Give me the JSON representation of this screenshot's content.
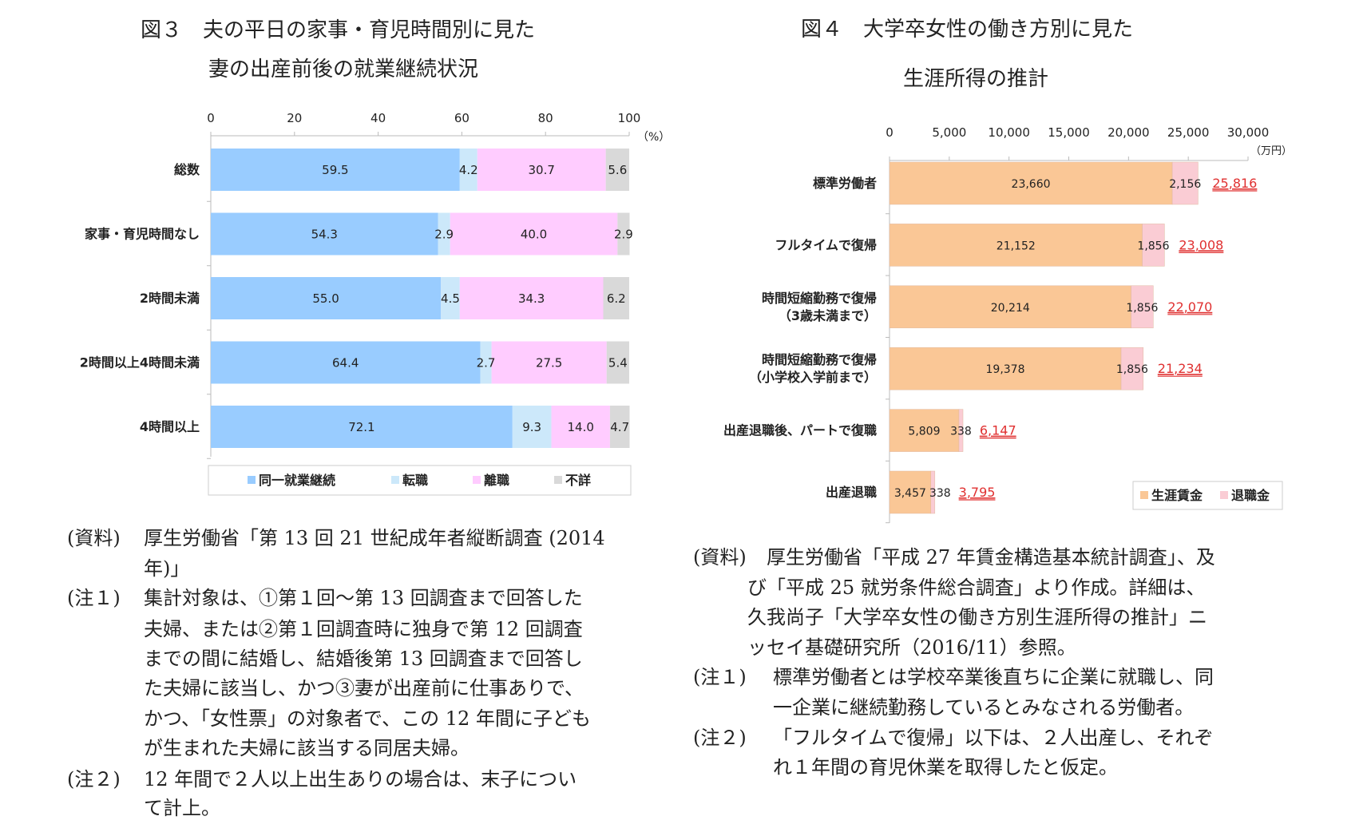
{
  "fig3": {
    "title_line1": "図３　夫の平日の家事・育児時間別に見た",
    "title_line2": "妻の出産前後の就業継続状況",
    "notes": [
      {
        "label": "(資料)",
        "text": "厚生労働省「第 13 回 21 世紀成年者縦断調査 (2014"
      },
      {
        "label": "",
        "text": "年)」"
      },
      {
        "label": "(注１)",
        "text": "集計対象は、①第１回～第 13 回調査まで回答した"
      },
      {
        "label": "",
        "text": "夫婦、または②第１回調査時に独身で第 12 回調査"
      },
      {
        "label": "",
        "text": "までの間に結婚し、結婚後第 13 回調査まで回答し"
      },
      {
        "label": "",
        "text": "た夫婦に該当し、かつ③妻が出産前に仕事ありで、"
      },
      {
        "label": "",
        "text": "かつ、「女性票」の対象者で、この 12 年間に子ども"
      },
      {
        "label": "",
        "text": "が生まれた夫婦に該当する同居夫婦。"
      },
      {
        "label": "(注２)",
        "text": "12 年間で２人以上出生ありの場合は、末子につい"
      },
      {
        "label": "",
        "text": "て計上。"
      }
    ]
  },
  "fig4": {
    "title_line1": "図４　大学卒女性の働き方別に見た",
    "title_line2": "生涯所得の推計",
    "notes": [
      {
        "label": "(資料)",
        "text": "厚生労働省「平成 27 年賃金構造基本統計調査」、及",
        "indent": "label"
      },
      {
        "label": "",
        "text": "び「平成 25 就労条件総合調査」より作成。詳細は、",
        "indent": "wrap"
      },
      {
        "label": "",
        "text": "久我尚子「大学卒女性の働き方別生涯所得の推計」ニ",
        "indent": "wrap"
      },
      {
        "label": "",
        "text": "ッセイ基礎研究所（2016/11）参照。",
        "indent": "wrap"
      },
      {
        "label": "(注１)",
        "text": "標準労働者とは学校卒業後直ちに企業に就職し、同",
        "indent": "note"
      },
      {
        "label": "",
        "text": "一企業に継続勤務しているとみなされる労働者。",
        "indent": "note"
      },
      {
        "label": "(注２)",
        "text": "「フルタイムで復帰」以下は、２人出産し、それぞ",
        "indent": "note"
      },
      {
        "label": "",
        "text": "れ１年間の育児休業を取得したと仮定。",
        "indent": "note"
      }
    ]
  },
  "chart_data": [
    {
      "type": "bar",
      "orientation": "horizontal",
      "stacked": true,
      "categories": [
        "総数",
        "家事・育児時間なし",
        "2時間未満",
        "2時間以上4時間未満",
        "4時間以上"
      ],
      "series": [
        {
          "name": "同一就業継続",
          "color": "#99CCFF",
          "values": [
            59.5,
            54.3,
            55.0,
            64.4,
            72.1
          ]
        },
        {
          "name": "転職",
          "color": "#CCE8FA",
          "values": [
            4.2,
            2.9,
            4.5,
            2.7,
            9.3
          ]
        },
        {
          "name": "離職",
          "color": "#FFCCFF",
          "values": [
            30.7,
            40.0,
            34.3,
            27.5,
            14.0
          ]
        },
        {
          "name": "不詳",
          "color": "#D9D9D9",
          "values": [
            5.6,
            2.9,
            6.2,
            5.4,
            4.7
          ]
        }
      ],
      "xlim": [
        0,
        100
      ],
      "xticks": [
        "0",
        "20",
        "40",
        "60",
        "80",
        "100"
      ],
      "xunit": "（%）",
      "legend": "bottom"
    },
    {
      "type": "bar",
      "orientation": "horizontal",
      "stacked": true,
      "categories": [
        [
          "標準労働者"
        ],
        [
          "フルタイムで復帰"
        ],
        [
          "時間短縮勤務で復帰",
          "（3歳未満まで）"
        ],
        [
          "時間短縮勤務で復帰",
          "（小学校入学前まで）"
        ],
        [
          "出産退職後、パートで復職"
        ],
        [
          "出産退職"
        ]
      ],
      "series": [
        {
          "name": "生涯賃金",
          "color": "#FAC796",
          "values": [
            23660,
            21152,
            20214,
            19378,
            5809,
            3457
          ],
          "labels": [
            "23,660",
            "21,152",
            "20,214",
            "19,378",
            "5,809",
            "3,457"
          ]
        },
        {
          "name": "退職金",
          "color": "#FACCD4",
          "values": [
            2156,
            1856,
            1856,
            1856,
            338,
            338
          ],
          "labels": [
            "2,156",
            "1,856",
            "1,856",
            "1,856",
            "338",
            "338"
          ]
        }
      ],
      "totals": [
        "25,816",
        "23,008",
        "22,070",
        "21,234",
        "6,147",
        "3,795"
      ],
      "total_color": "#E03030",
      "xlim": [
        0,
        30000
      ],
      "xticks": [
        "0",
        "5,000",
        "10,000",
        "15,000",
        "20,000",
        "25,000",
        "30,000"
      ],
      "xunit": "（万円）",
      "legend": "bottom-right"
    }
  ]
}
